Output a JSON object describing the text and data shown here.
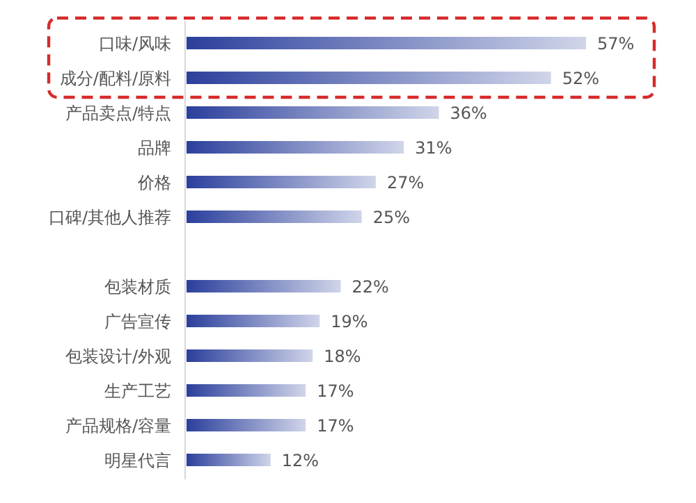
{
  "chart_data": {
    "type": "bar",
    "orientation": "horizontal",
    "color": "#2b3f9c",
    "categories": [
      "口味/风味",
      "成分/配料/原料",
      "产品卖点/特点",
      "品牌",
      "价格",
      "口碑/其他人推荐",
      null,
      "包装材质",
      "广告宣传",
      "包装设计/外观",
      "生产工艺",
      "产品规格/容量",
      "明星代言"
    ],
    "values": [
      57,
      52,
      36,
      31,
      27,
      25,
      null,
      22,
      19,
      18,
      17,
      17,
      12
    ],
    "value_labels": [
      "57%",
      "52%",
      "36%",
      "31%",
      "27%",
      "25%",
      null,
      "22%",
      "19%",
      "18%",
      "17%",
      "17%",
      "12%"
    ]
  }
}
